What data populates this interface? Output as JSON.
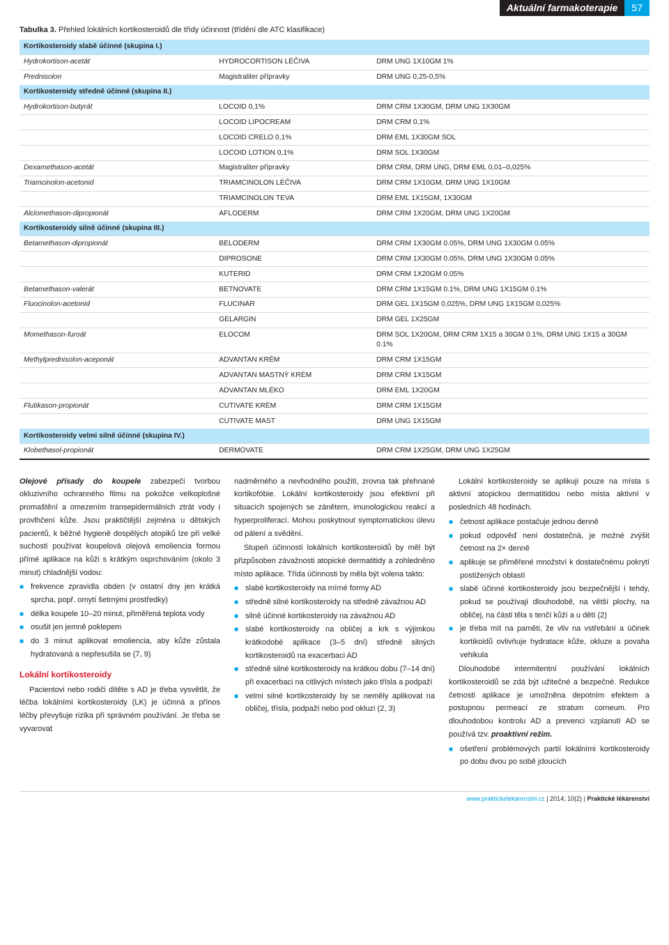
{
  "header": {
    "section_title": "Aktuální farmakoterapie",
    "page_num": "57"
  },
  "table": {
    "caption_bold": "Tabulka 3.",
    "caption_rest": " Přehled lokálních kortikosteroidů dle třídy účinnost (třídění dle ATC klasifikace)",
    "sections": [
      {
        "title": "Kortikosteroidy slabě účinné (skupina I.)",
        "rows": [
          [
            "Hydrokortison-acetát",
            "HYDROCORTISON LÉČIVA",
            "DRM UNG 1X10GM 1%"
          ],
          [
            "Prednisolon",
            "Magistraliter přípravky",
            "DRM UNG 0,25-0,5%"
          ]
        ]
      },
      {
        "title": "Kortikosteroidy středně účinné (skupina II.)",
        "rows": [
          [
            "Hydrokortison-butyrát",
            "LOCOID 0,1%",
            "DRM CRM 1X30GM, DRM UNG 1X30GM"
          ],
          [
            "",
            "LOCOID LIPOCREAM",
            "DRM CRM 0,1%"
          ],
          [
            "",
            "LOCOID CRELO 0,1%",
            "DRM EML 1X30GM SOL"
          ],
          [
            "",
            "LOCOID LOTION 0,1%",
            "DRM SOL 1X30GM"
          ],
          [
            "Dexamethason-acetát",
            "Magistraliter přípravky",
            "DRM CRM, DRM UNG, DRM EML 0,01–0,025%"
          ],
          [
            "Triamcinolon-acetonid",
            "TRIAMCINOLON LÉČIVA",
            "DRM CRM 1X10GM, DRM UNG 1X10GM"
          ],
          [
            "",
            "TRIAMCINOLON TEVA",
            "DRM EML 1X15GM, 1X30GM"
          ],
          [
            "Alclomethason-dipropionát",
            "AFLODERM",
            "DRM CRM 1X20GM, DRM UNG 1X20GM"
          ]
        ]
      },
      {
        "title": "Kortikosteroidy silně účinné (skupina III.)",
        "rows": [
          [
            "Betamethason-dipropionát",
            "BELODERM",
            "DRM CRM 1X30GM 0.05%, DRM UNG 1X30GM 0.05%"
          ],
          [
            "",
            "DIPROSONE",
            "DRM CRM 1X30GM 0.05%, DRM UNG 1X30GM 0.05%"
          ],
          [
            "",
            "KUTERID",
            "DRM CRM 1X20GM 0.05%"
          ],
          [
            "Betamethason-valerát",
            "BETNOVATE",
            "DRM CRM 1X15GM 0.1%, DRM UNG 1X15GM 0.1%"
          ],
          [
            "Fluocinolon-acetonid",
            "FLUCINAR",
            "DRM GEL 1X15GM 0,025%,  DRM UNG 1X15GM 0,025%"
          ],
          [
            "",
            "GELARGIN",
            "DRM GEL 1X25GM"
          ],
          [
            "Momethason-furoát",
            "ELOCOM",
            "DRM SOL 1X20GM, DRM CRM 1X15 a 30GM 0.1%, DRM UNG 1X15 a 30GM 0.1%"
          ],
          [
            "Methylprednisolon-aceponát",
            "ADVANTAN KRÉM",
            "DRM CRM 1X15GM"
          ],
          [
            "",
            "ADVANTAN MASTNÝ KRÉM",
            "DRM CRM 1X15GM"
          ],
          [
            "",
            "ADVANTAN MLÉKO",
            "DRM EML 1X20GM"
          ],
          [
            "Flutikason-propionát",
            "CUTIVATE KRÉM",
            "DRM CRM 1X15GM"
          ],
          [
            "",
            "CUTIVATE MAST",
            "DRM UNG 1X15GM"
          ]
        ]
      },
      {
        "title": "Kortikosteroidy velmi silně účinné (skupina IV.)",
        "rows": [
          [
            "Klobethasol-propionát",
            "DERMOVATE",
            "DRM CRM 1X25GM, DRM UNG 1X25GM"
          ]
        ]
      }
    ]
  },
  "body": {
    "col1": {
      "p1_runin": "Olejové přísady do koupele",
      "p1": " zabezpečí tvorbou okluzivního ochranného filmu na pokožce velkoplošné promaštění a omezením transepidermálních ztrát vody i provlhčení kůže. Jsou praktičtější zejména u dětských pacientů, k běžné hygieně dospělých atopiků lze při velké suchosti používat koupelová olejová emoliencia formou přímé aplikace na kůži s krátkým osprchováním (okolo 3 minut) chladnější vodou:",
      "list1": [
        "frekvence zpravidla obden (v ostatní dny jen krátká sprcha, popř. omytí šetrnými prostředky)",
        "délka koupele 10–20 minut, přiměřená teplota vody",
        "osušit jen jemně poklepem",
        "do 3 minut aplikovat emoliencia, aby kůže zůstala hydratovaná a nepřesušila se (7, 9)"
      ],
      "h3": "Lokální kortikosteroidy",
      "p2": "Pacientovi nebo rodiči dítěte s AD je třeba vysvětlit, že léčba lokálními kortikosteroidy (LK) je účinná a přínos léčby převyšuje rizika při správném používání. Je třeba se vyvarovat"
    },
    "col2": {
      "p1": "nadměrného a nevhodného použití, zrovna tak přehnané kortikofóbie. Lokální kortikosteroidy jsou efektivní při situacích spojených se zánětem, imunologickou reakcí a hyperproliferací. Mohou poskytnout symptomatickou úlevu od pálení a svědění.",
      "p2": "Stupeň účinnosti lokálních kortikosteroidů by měl být přizpůsoben závažnosti atopické dermatitidy a zohledněno místo aplikace. Třída účinnosti by měla být volena takto:",
      "list1": [
        "slabé kortikosteroidy na mírné formy AD",
        "středně silné kortikosteroidy na středně závažnou AD",
        "silně účinné kortikosteroidy na závažnou AD",
        "slabé kortikosteroidy na obličej a krk s výjimkou krátkodobé aplikace (3–5 dní) středně silných kortikosteroidů na exacerbaci AD",
        "středně silné kortikosteroidy na krátkou dobu (7–14 dní) při exacerbaci na citlivých místech jako třísla a podpaží",
        "velmi silné kortikosteroidy by se neměly aplikovat na obličej, třísla, podpaží nebo pod okluzi (2, 3)"
      ]
    },
    "col3": {
      "p1": "Lokální kortikosteroidy se aplikují pouze na místa s aktivní atopickou dermatitidou nebo místa aktivní v posledních 48 hodinách.",
      "list1": [
        "četnost aplikace postačuje jednou denně",
        "pokud odpověď není dostatečná, je možné zvýšit četnost na 2× denně",
        "aplikuje se přiměřené množství k dostatečnému pokrytí postižených oblastí",
        "slabě účinné kortikosteroidy jsou bezpečnější i tehdy, pokud se používají dlouhodobě, na větší plochy, na obličej, na části těla s tenčí kůží a u dětí (2)",
        "je třeba mít na paměti, že vliv na vstřebání a účinek kortikoidů ovlivňuje hydratace kůže, okluze a povaha vehikula"
      ],
      "p2_a": "Dlouhodobé intermitentní používání lokálních kortikosteroidů se zdá být užitečné a bezpečné. Redukce četnosti aplikace je umožněna depotním efektem a postupnou permeací ze stratum corneum. Pro dlouhodobou kontrolu AD a prevenci vzplanutí AD se používá tzv. ",
      "p2_runin": "proaktivní režim.",
      "list2": [
        "ošetření problémových partií lokálními kortikosteroidy po dobu dvou po sobě jdoucích"
      ]
    }
  },
  "footer": {
    "site": "www.praktickelekarenstvi.cz",
    "sep": "  |  ",
    "issue": "2014; 10(2)",
    "journal": "Praktické lékárenství"
  }
}
